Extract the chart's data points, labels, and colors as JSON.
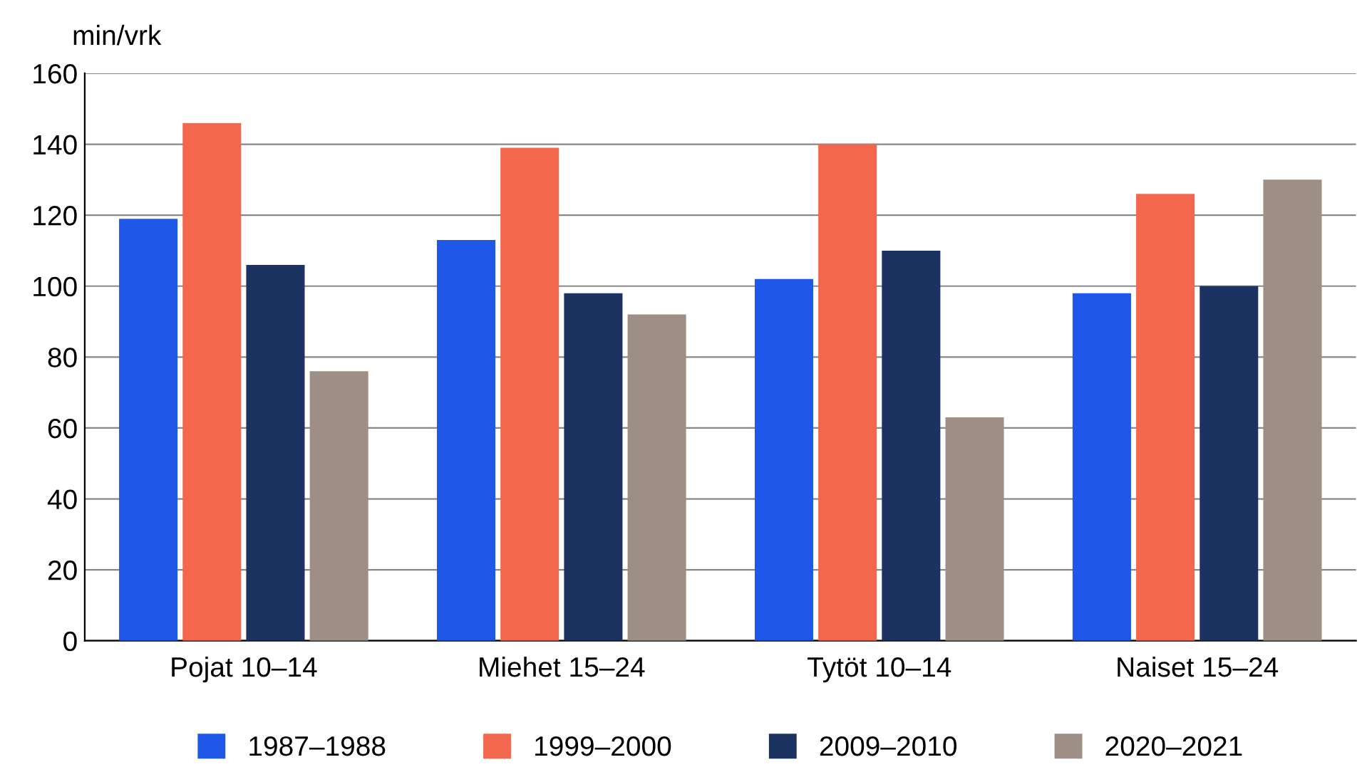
{
  "chart_data": {
    "type": "bar",
    "ylabel": "min/vrk",
    "categories": [
      "Pojat 10–14",
      "Miehet 15–24",
      "Tytöt 10–14",
      "Naiset 15–24"
    ],
    "series": [
      {
        "name": "1987–1988",
        "color": "#1f57e8",
        "values": [
          119,
          113,
          102,
          98
        ]
      },
      {
        "name": "1999–2000",
        "color": "#f2674d",
        "values": [
          146,
          139,
          140,
          126
        ]
      },
      {
        "name": "2009–2010",
        "color": "#1c3260",
        "values": [
          106,
          98,
          110,
          100
        ]
      },
      {
        "name": "2020–2021",
        "color": "#9e8f86",
        "values": [
          76,
          92,
          63,
          130
        ]
      }
    ],
    "ylim": [
      0,
      160
    ],
    "yticks": [
      0,
      20,
      40,
      60,
      80,
      100,
      120,
      140,
      160
    ],
    "grid": "y",
    "legend": "bottom"
  }
}
